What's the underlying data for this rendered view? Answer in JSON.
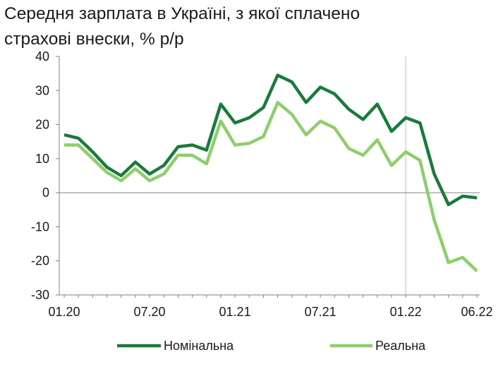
{
  "colors": {
    "nominal": "#1a7a3c",
    "real": "#8fce6b",
    "axis": "#808080",
    "vline": "#bdbdbd"
  },
  "chart_data": {
    "type": "line",
    "title_lines": [
      "Середня зарплата в Україні, з якої сплачено",
      "страхові внески, % р/р"
    ],
    "xlabel": "",
    "ylabel": "",
    "ylim": [
      -30,
      40
    ],
    "yticks": [
      "40",
      "30",
      "20",
      "10",
      "0",
      "-10",
      "-20",
      "-30"
    ],
    "ytick_values": [
      40,
      30,
      20,
      10,
      0,
      -10,
      -20,
      -30
    ],
    "x_tick_labels": [
      "01.20",
      "07.20",
      "01.21",
      "07.21",
      "01.22",
      "06.22"
    ],
    "x_tick_indices": [
      0,
      6,
      12,
      18,
      24,
      29
    ],
    "x": [
      "01.20",
      "02.20",
      "03.20",
      "04.20",
      "05.20",
      "06.20",
      "07.20",
      "08.20",
      "09.20",
      "10.20",
      "11.20",
      "12.20",
      "01.21",
      "02.21",
      "03.21",
      "04.21",
      "05.21",
      "06.21",
      "07.21",
      "08.21",
      "09.21",
      "10.21",
      "11.21",
      "12.21",
      "01.22",
      "02.22",
      "03.22",
      "04.22",
      "05.22",
      "06.22"
    ],
    "vertical_marker_index": 24,
    "grid": false,
    "legend_position": "bottom",
    "series": [
      {
        "name": "Номінальна",
        "values": [
          17,
          16,
          12,
          7.5,
          5,
          9,
          5.5,
          8,
          13.5,
          14,
          12.5,
          26,
          20.5,
          22,
          25,
          34.5,
          32.5,
          26.5,
          31,
          29,
          24.5,
          21.5,
          26,
          18,
          22,
          20.5,
          5.5,
          -3.5,
          -1,
          -1.5
        ]
      },
      {
        "name": "Реальна",
        "values": [
          14,
          14,
          10,
          6,
          3.5,
          7,
          3.5,
          5.5,
          11,
          11,
          8.5,
          21,
          14,
          14.5,
          16.5,
          26.5,
          23,
          17,
          21,
          19,
          13,
          11,
          15.5,
          8,
          12,
          9.5,
          -8,
          -20.5,
          -19,
          -23
        ]
      }
    ]
  }
}
